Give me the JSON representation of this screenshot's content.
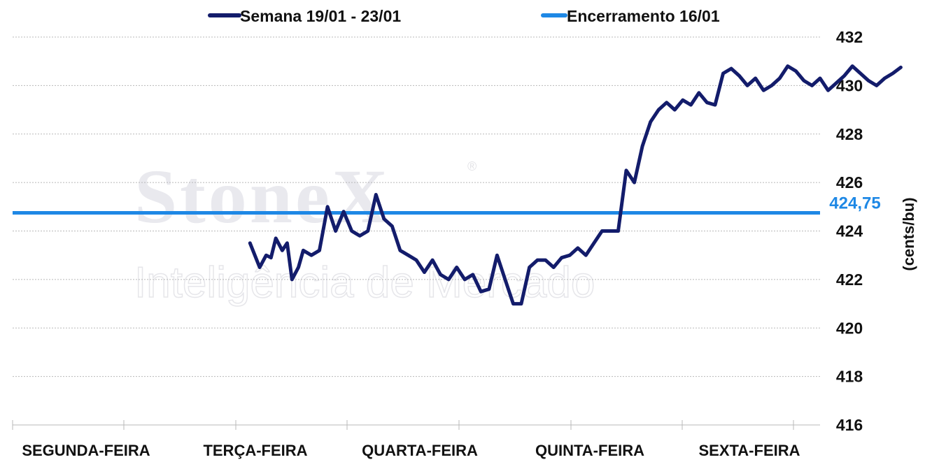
{
  "chart_data": {
    "type": "line",
    "title": "",
    "xlabel": "",
    "ylabel": "(cents/bu)",
    "ylim": [
      416,
      432
    ],
    "yticks": [
      "432",
      "430",
      "428",
      "426",
      "424",
      "422",
      "420",
      "418",
      "416"
    ],
    "categories": [
      "SEGUNDA-FEIRA",
      "TERÇA-FEIRA",
      "QUARTA-FEIRA",
      "QUINTA-FEIRA",
      "SEXTA-FEIRA"
    ],
    "grid": true,
    "legend_position": "top",
    "watermark": {
      "brand": "StoneX",
      "registered": "®",
      "tagline": "Inteligência de Mercado"
    },
    "reference_line": {
      "name": "Encerramento 16/01",
      "value": 424.75,
      "label": "424,75",
      "color": "#1e88e5"
    },
    "series": [
      {
        "name": "Semana 19/01 - 23/01",
        "color": "#131c6b",
        "x": [
          1.47,
          1.53,
          1.57,
          1.6,
          1.63,
          1.67,
          1.7,
          1.73,
          1.77,
          1.8,
          1.85,
          1.9,
          1.95,
          2.0,
          2.05,
          2.1,
          2.15,
          2.2,
          2.25,
          2.3,
          2.35,
          2.4,
          2.45,
          2.5,
          2.55,
          2.6,
          2.65,
          2.7,
          2.75,
          2.8,
          2.85,
          2.9,
          2.95,
          3.0,
          3.05,
          3.1,
          3.15,
          3.2,
          3.25,
          3.3,
          3.35,
          3.4,
          3.45,
          3.5,
          3.55,
          3.6,
          3.65,
          3.7,
          3.75,
          3.8,
          3.85,
          3.9,
          3.95,
          4.0,
          4.05,
          4.1,
          4.15,
          4.2,
          4.25,
          4.3,
          4.35,
          4.4,
          4.45,
          4.5,
          4.55,
          4.6,
          4.65,
          4.7,
          4.75,
          4.8,
          4.85,
          4.9,
          4.95,
          5.0,
          5.05,
          5.1,
          5.15,
          5.2,
          5.25,
          5.3,
          5.35,
          5.4,
          5.45,
          5.5
        ],
        "values": [
          423.5,
          422.5,
          423.0,
          422.9,
          423.7,
          423.2,
          423.5,
          422.0,
          422.5,
          423.2,
          423.0,
          423.2,
          425.0,
          424.0,
          424.8,
          424.0,
          423.8,
          424.0,
          425.5,
          424.5,
          424.2,
          423.2,
          423.0,
          422.8,
          422.3,
          422.8,
          422.2,
          422.0,
          422.5,
          422.0,
          422.2,
          421.5,
          421.6,
          423.0,
          422.0,
          421.0,
          421.0,
          422.5,
          422.8,
          422.8,
          422.5,
          422.9,
          423.0,
          423.3,
          423.0,
          423.5,
          424.0,
          424.0,
          424.0,
          426.5,
          426.0,
          427.5,
          428.5,
          429.0,
          429.3,
          429.0,
          429.4,
          429.2,
          429.7,
          429.3,
          429.2,
          430.5,
          430.7,
          430.4,
          430.0,
          430.3,
          429.8,
          430.0,
          430.3,
          430.8,
          430.6,
          430.2,
          430.0,
          430.3,
          429.8,
          430.1,
          430.4,
          430.8,
          430.5,
          430.2,
          430.0,
          430.3,
          430.5,
          430.75
        ]
      }
    ]
  }
}
